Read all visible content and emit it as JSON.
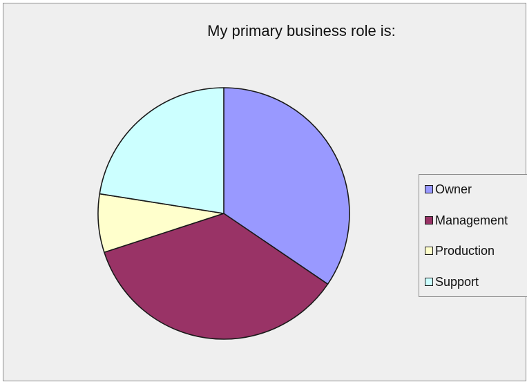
{
  "chart_data": {
    "type": "pie",
    "title": "My primary business role is:",
    "categories": [
      "Owner",
      "Management",
      "Production",
      "Support"
    ],
    "values": [
      34.5,
      35.5,
      7.5,
      22.5
    ],
    "colors": [
      "#9999ff",
      "#993366",
      "#ffffcc",
      "#ccffff"
    ],
    "legend_position": "right",
    "start_angle_deg": 0,
    "direction": "clockwise"
  }
}
